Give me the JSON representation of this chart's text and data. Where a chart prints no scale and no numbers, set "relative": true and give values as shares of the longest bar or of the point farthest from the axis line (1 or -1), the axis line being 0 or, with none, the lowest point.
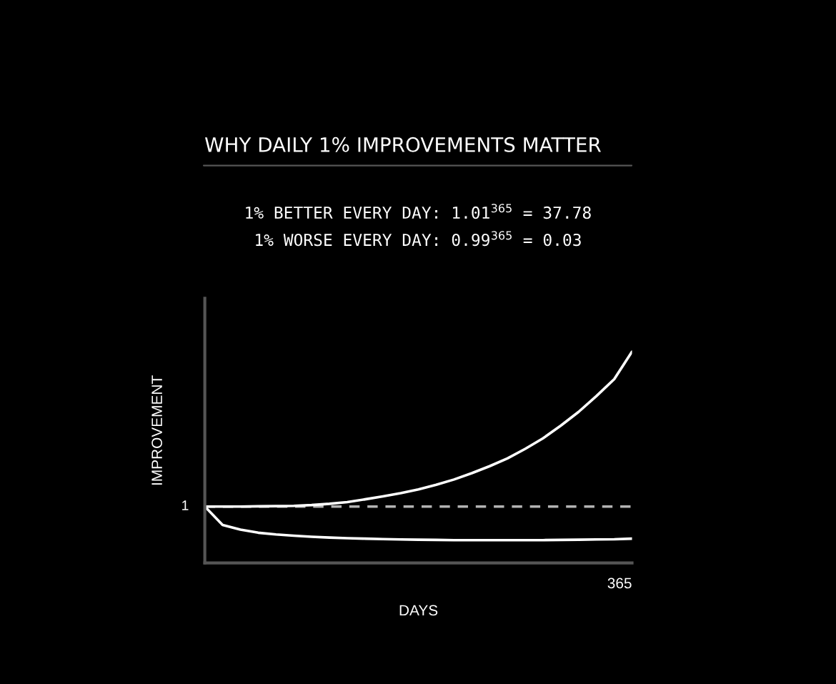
{
  "chart_data": {
    "type": "line",
    "title": "WHY DAILY 1% IMPROVEMENTS MATTER",
    "subtitle": "1% BETTER EVERY DAY: 1.01$^{365}$ = 37.78\n1% WORSE EVERY DAY: 0.99$^{365}$ = 0.03",
    "xlabel": "DAYS",
    "ylabel": "IMPROVEMENT",
    "relative": true,
    "categories": [
      null,
      null,
      null,
      null,
      null,
      null,
      null,
      null,
      null,
      null,
      null,
      null,
      null,
      null,
      null,
      null,
      null,
      null,
      null,
      null,
      null,
      null,
      null,
      null,
      null
    ],
    "series": [
      {
        "color": "#ffffff",
        "values": [
          0.267,
          0.267,
          0.267,
          0.268,
          0.269,
          0.27,
          0.274,
          0.28,
          0.288,
          0.301,
          0.315,
          0.33,
          0.348,
          0.37,
          0.395,
          0.425,
          0.458,
          0.495,
          0.54,
          0.59,
          0.65,
          0.715,
          0.79,
          0.87,
          1
        ]
      },
      {
        "color": "#ffffff",
        "values": [
          0.267,
          0.18,
          0.158,
          0.143,
          0.135,
          0.129,
          0.124,
          0.12,
          0.117,
          0.115,
          0.113,
          0.111,
          0.11,
          0.109,
          0.108,
          0.108,
          0.108,
          0.108,
          0.108,
          0.108,
          0.109,
          0.11,
          0.111,
          0.112,
          0.115
        ]
      }
    ],
    "ref_lines": [
      {
        "axis": "y",
        "value": 0.267,
        "color": "#b3b3b3",
        "line_style": "dashed"
      }
    ],
    "annotations": [
      "1",
      "365"
    ]
  }
}
